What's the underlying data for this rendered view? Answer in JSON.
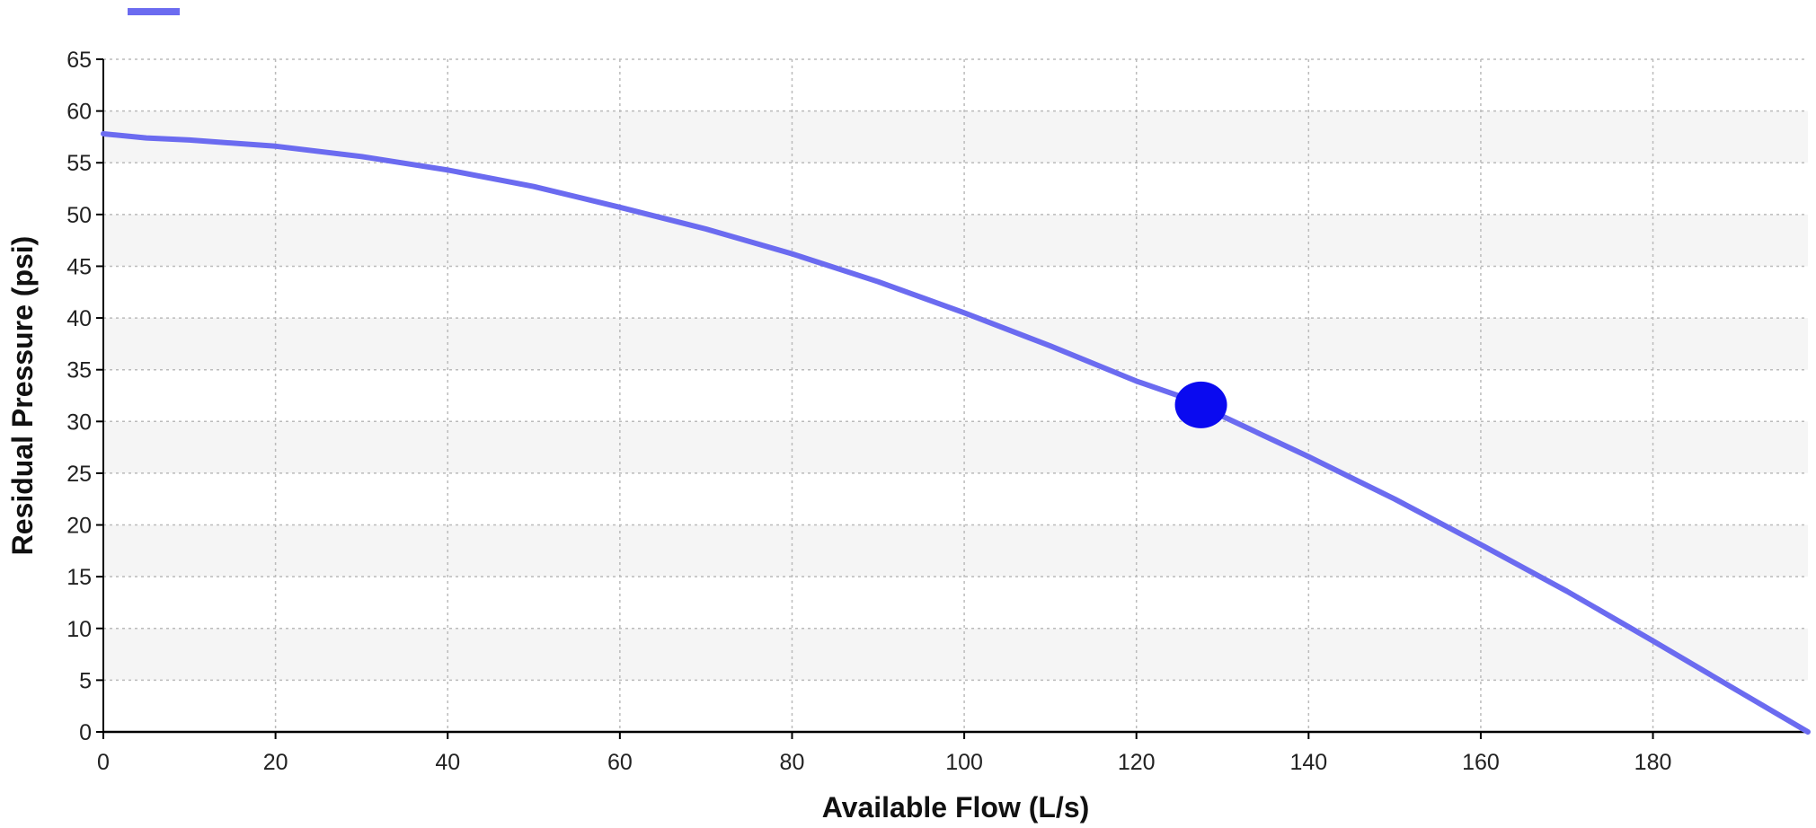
{
  "chart_data": {
    "type": "line",
    "title": "",
    "xlabel": "Available Flow (L/s)",
    "ylabel": "Residual Pressure (psi)",
    "xlim": [
      0,
      198
    ],
    "ylim": [
      0,
      65
    ],
    "x_ticks": [
      0,
      20,
      40,
      60,
      80,
      100,
      120,
      140,
      160,
      180
    ],
    "y_ticks": [
      0,
      5,
      10,
      15,
      20,
      25,
      30,
      35,
      40,
      45,
      50,
      55,
      60,
      65
    ],
    "grid": true,
    "grid_style": "dotted",
    "alternating_band_color": "#f5f5f5",
    "legend": {
      "placement": "top-left",
      "entries": [
        {
          "color": "#6b6bf0"
        }
      ]
    },
    "series": [
      {
        "color": "#6b6bf0",
        "x": [
          0,
          5,
          10,
          20,
          30,
          40,
          50,
          60,
          70,
          80,
          90,
          100,
          110,
          120,
          128,
          130,
          140,
          150,
          160,
          170,
          180,
          190,
          198
        ],
        "y": [
          57.8,
          57.4,
          57.2,
          56.6,
          55.6,
          54.3,
          52.7,
          50.7,
          48.6,
          46.2,
          43.5,
          40.5,
          37.3,
          33.9,
          31.6,
          30.5,
          26.6,
          22.5,
          18.1,
          13.6,
          8.8,
          3.9,
          0
        ]
      }
    ],
    "marker": {
      "x": 127.5,
      "y": 31.6,
      "color": "#0a0af0"
    },
    "axis_color": "#000000",
    "grid_color": "#bbbbbb"
  }
}
